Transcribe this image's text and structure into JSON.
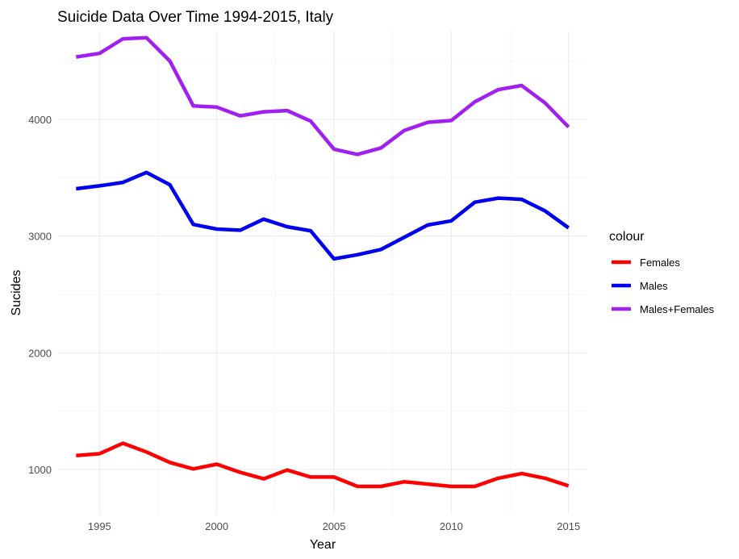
{
  "chart_data": {
    "type": "line",
    "title": "Suicide Data Over Time 1994-2015, Italy",
    "xlabel": "Year",
    "ylabel": "Sucides",
    "xlim": [
      1993.2,
      2015.8
    ],
    "ylim": [
      620,
      4760
    ],
    "x_ticks": [
      1995,
      2000,
      2005,
      2010,
      2015
    ],
    "y_ticks": [
      1000,
      2000,
      3000,
      4000
    ],
    "grid": true,
    "legend": {
      "title": "colour",
      "position": "right"
    },
    "x": [
      1994,
      1995,
      1996,
      1997,
      1998,
      1999,
      2000,
      2001,
      2002,
      2003,
      2004,
      2005,
      2006,
      2007,
      2008,
      2009,
      2010,
      2011,
      2012,
      2013,
      2014,
      2015
    ],
    "series": [
      {
        "name": "Females",
        "color": "#ff0000",
        "values": [
          1120,
          1135,
          1225,
          1150,
          1060,
          1005,
          1045,
          975,
          920,
          995,
          935,
          935,
          855,
          855,
          895,
          875,
          855,
          855,
          925,
          965,
          925,
          860
        ]
      },
      {
        "name": "Males",
        "color": "#0000ee",
        "values": [
          3405,
          3430,
          3460,
          3545,
          3440,
          3100,
          3060,
          3050,
          3145,
          3080,
          3045,
          2805,
          2840,
          2885,
          2990,
          3095,
          3130,
          3290,
          3325,
          3315,
          3215,
          3070
        ]
      },
      {
        "name": "Males+Females",
        "color": "#a020f0",
        "values": [
          4535,
          4565,
          4690,
          4700,
          4500,
          4115,
          4105,
          4030,
          4065,
          4075,
          3985,
          3745,
          3700,
          3755,
          3905,
          3975,
          3990,
          4150,
          4255,
          4290,
          4140,
          3935
        ]
      }
    ]
  }
}
